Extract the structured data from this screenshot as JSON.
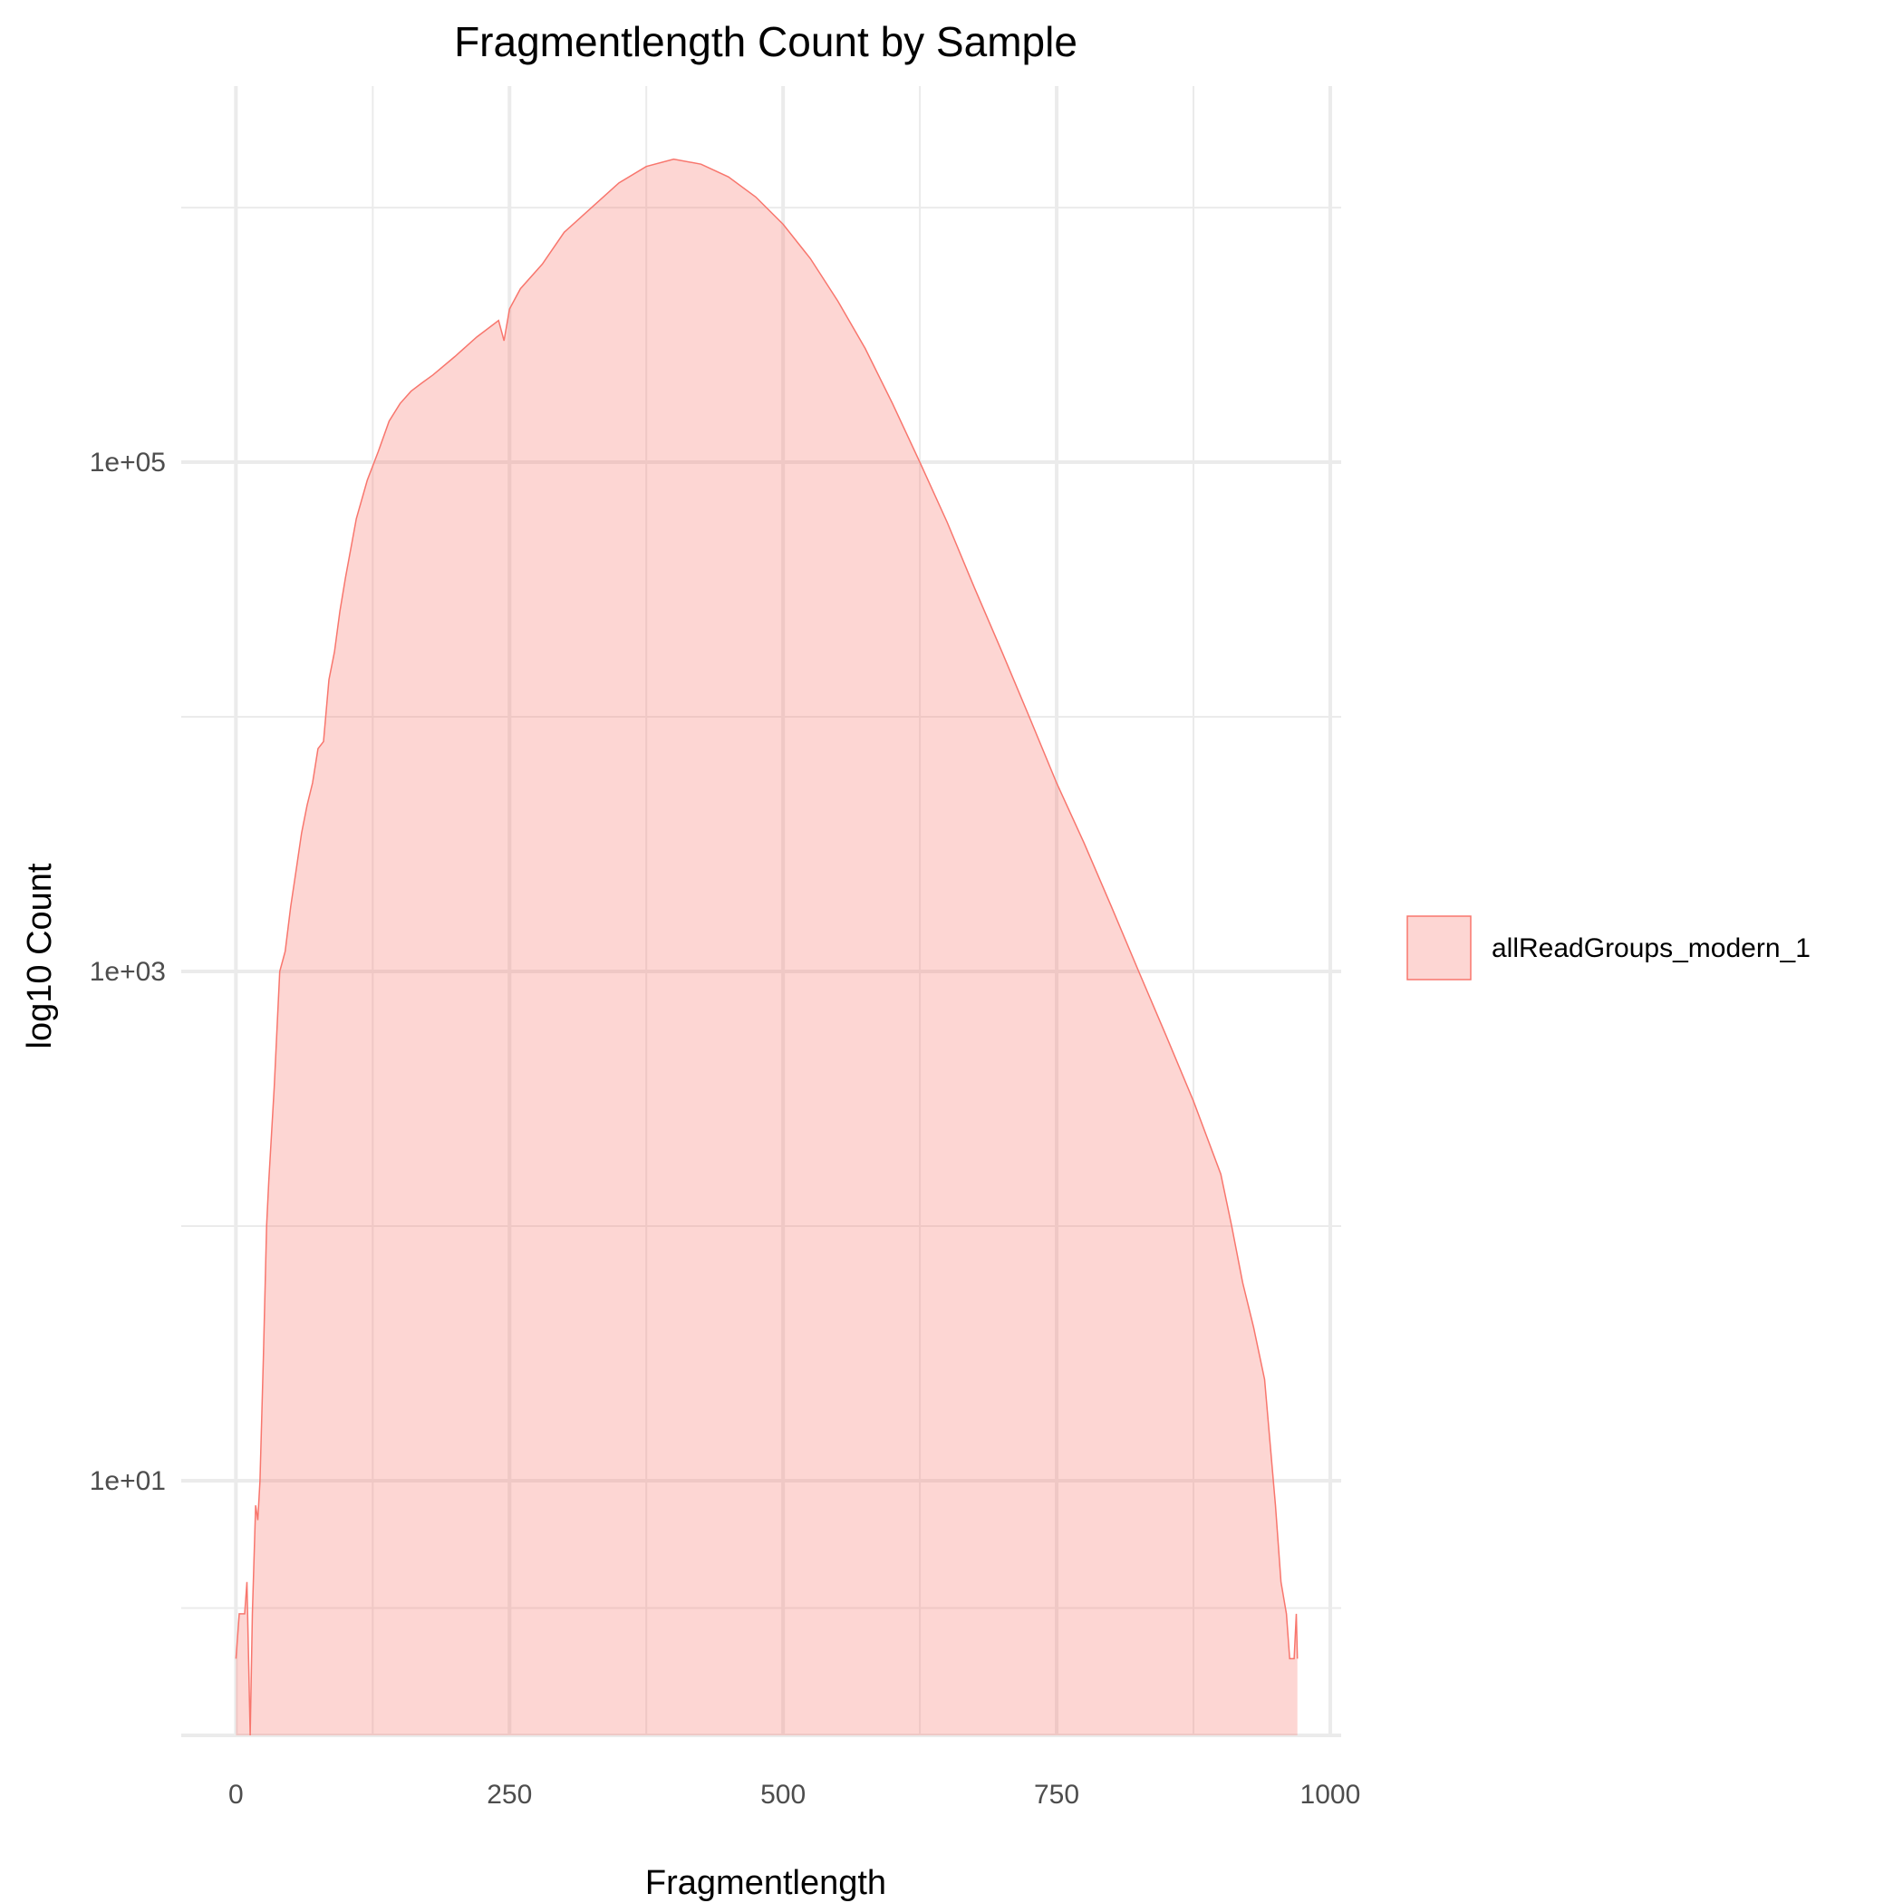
{
  "chart_data": {
    "type": "area",
    "title": "Fragmentlength Count by Sample",
    "xlabel": "Fragmentlength",
    "ylabel": "log10 Count",
    "xlim": [
      -50,
      1010
    ],
    "ylim": [
      1,
      3000000
    ],
    "y_scale": "log10",
    "x_ticks": [
      0,
      250,
      500,
      750,
      1000
    ],
    "x_tick_labels": [
      "0",
      "250",
      "500",
      "750",
      "1000"
    ],
    "y_ticks": [
      10,
      1000,
      100000
    ],
    "y_tick_labels": [
      "1e+01",
      "1e+03",
      "1e+05"
    ],
    "grid": true,
    "legend_position": "right",
    "colors": {
      "fill": "#f8766d",
      "fill_opacity": 0.3,
      "stroke": "#f8766d",
      "grid": "#ebebeb"
    },
    "series": [
      {
        "name": "allReadGroups_modern_1",
        "x": [
          0,
          3,
          8,
          10,
          13,
          15,
          18,
          20,
          22,
          25,
          28,
          30,
          35,
          40,
          45,
          50,
          55,
          60,
          65,
          70,
          75,
          80,
          85,
          90,
          95,
          100,
          110,
          120,
          130,
          140,
          150,
          160,
          170,
          180,
          200,
          220,
          240,
          245,
          250,
          260,
          280,
          300,
          325,
          350,
          375,
          400,
          425,
          450,
          475,
          500,
          525,
          550,
          575,
          600,
          625,
          650,
          675,
          700,
          725,
          750,
          775,
          800,
          825,
          850,
          875,
          900,
          910,
          920,
          930,
          940,
          950,
          955,
          960,
          963,
          965,
          967,
          969,
          970
        ],
        "y": [
          2,
          3,
          3,
          4,
          1,
          3,
          8,
          7,
          10,
          30,
          100,
          150,
          350,
          1000,
          1200,
          1800,
          2500,
          3500,
          4500,
          5500,
          7500,
          8000,
          14000,
          18000,
          26000,
          35000,
          60000,
          85000,
          110000,
          145000,
          170000,
          190000,
          205000,
          220000,
          260000,
          310000,
          360000,
          300000,
          400000,
          480000,
          600000,
          800000,
          1000000,
          1250000,
          1450000,
          1550000,
          1480000,
          1320000,
          1100000,
          860000,
          630000,
          430000,
          280000,
          170000,
          100000,
          58000,
          32000,
          18000,
          10000,
          5500,
          3200,
          1800,
          1000,
          560,
          310,
          160,
          100,
          60,
          40,
          25,
          8,
          4,
          3,
          2,
          2,
          2,
          3,
          2
        ]
      }
    ]
  }
}
